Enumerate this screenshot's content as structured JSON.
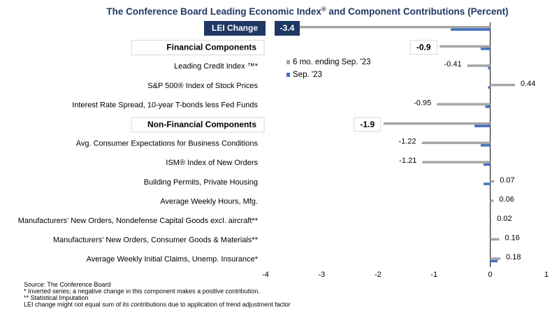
{
  "chart_data": {
    "type": "bar",
    "orientation": "horizontal",
    "title": "The Conference Board Leading Economic Index",
    "title_sup": "®",
    "title_rest": " and Component Contributions (Percent)",
    "xlim": [
      -4,
      1
    ],
    "xticks": [
      "-4",
      "-3",
      "-2",
      "-1",
      "0",
      "1"
    ],
    "grid": false,
    "legend_position": "top-center",
    "series": [
      {
        "name": "6 mo. ending Sep. '23",
        "color": "#a6a6a6"
      },
      {
        "name": "Sep. '23",
        "color": "#4472c4"
      }
    ],
    "rows": [
      {
        "kind": "lei",
        "label": "LEI Change",
        "six": -3.4,
        "sep": -0.7,
        "value_label": "-3.4"
      },
      {
        "kind": "section",
        "label": "Financial Components",
        "six": -0.9,
        "sep": -0.17,
        "value_label": "-0.9"
      },
      {
        "kind": "item",
        "label": "Leading Credit Index ™*",
        "six": -0.41,
        "sep": -0.04,
        "value_label": "-0.41"
      },
      {
        "kind": "item",
        "label": "S&P 500® Index of Stock Prices",
        "six": 0.44,
        "sep": -0.04,
        "value_label": "0.44"
      },
      {
        "kind": "item",
        "label": "Interest Rate Spread, 10-year T-bonds less Fed Funds",
        "six": -0.95,
        "sep": -0.09,
        "value_label": "-0.95"
      },
      {
        "kind": "section",
        "label": "Non-Financial Components",
        "six": -1.9,
        "sep": -0.28,
        "value_label": "-1.9"
      },
      {
        "kind": "item",
        "label": "Avg. Consumer Expectations for Business Conditions",
        "six": -1.22,
        "sep": -0.17,
        "value_label": "-1.22"
      },
      {
        "kind": "item",
        "label": "ISM® Index of New Orders",
        "six": -1.21,
        "sep": -0.12,
        "value_label": "-1.21"
      },
      {
        "kind": "item",
        "label": "Building Permits, Private Housing",
        "six": 0.07,
        "sep": -0.12,
        "value_label": "0.07"
      },
      {
        "kind": "item",
        "label": "Average Weekly Hours, Mfg.",
        "six": 0.06,
        "sep": 0.0,
        "value_label": "0.06"
      },
      {
        "kind": "item",
        "label": "Manufacturers' New Orders, Nondefense Capital Goods excl. aircraft**",
        "six": 0.02,
        "sep": 0.0,
        "value_label": "0.02"
      },
      {
        "kind": "item",
        "label": "Manufacturers' New Orders, Consumer Goods & Materials**",
        "six": 0.16,
        "sep": 0.01,
        "value_label": "0.16"
      },
      {
        "kind": "item",
        "label": "Average Weekly Initial Claims, Unemp. Insurance*",
        "six": 0.18,
        "sep": 0.13,
        "value_label": "0.18"
      }
    ],
    "footnotes": [
      "Source: The Conference Board",
      "*  Inverted series; a negative change in this component makes a positive contribution.",
      "**  Statistical Imputation",
      "LEI change might not equal sum of    its contributions due to application of trend adjustment factor"
    ],
    "colors": {
      "six": "#a6a6a6",
      "sep": "#4472c4",
      "lei_box": "#1f3864",
      "title": "#1f3864"
    }
  }
}
